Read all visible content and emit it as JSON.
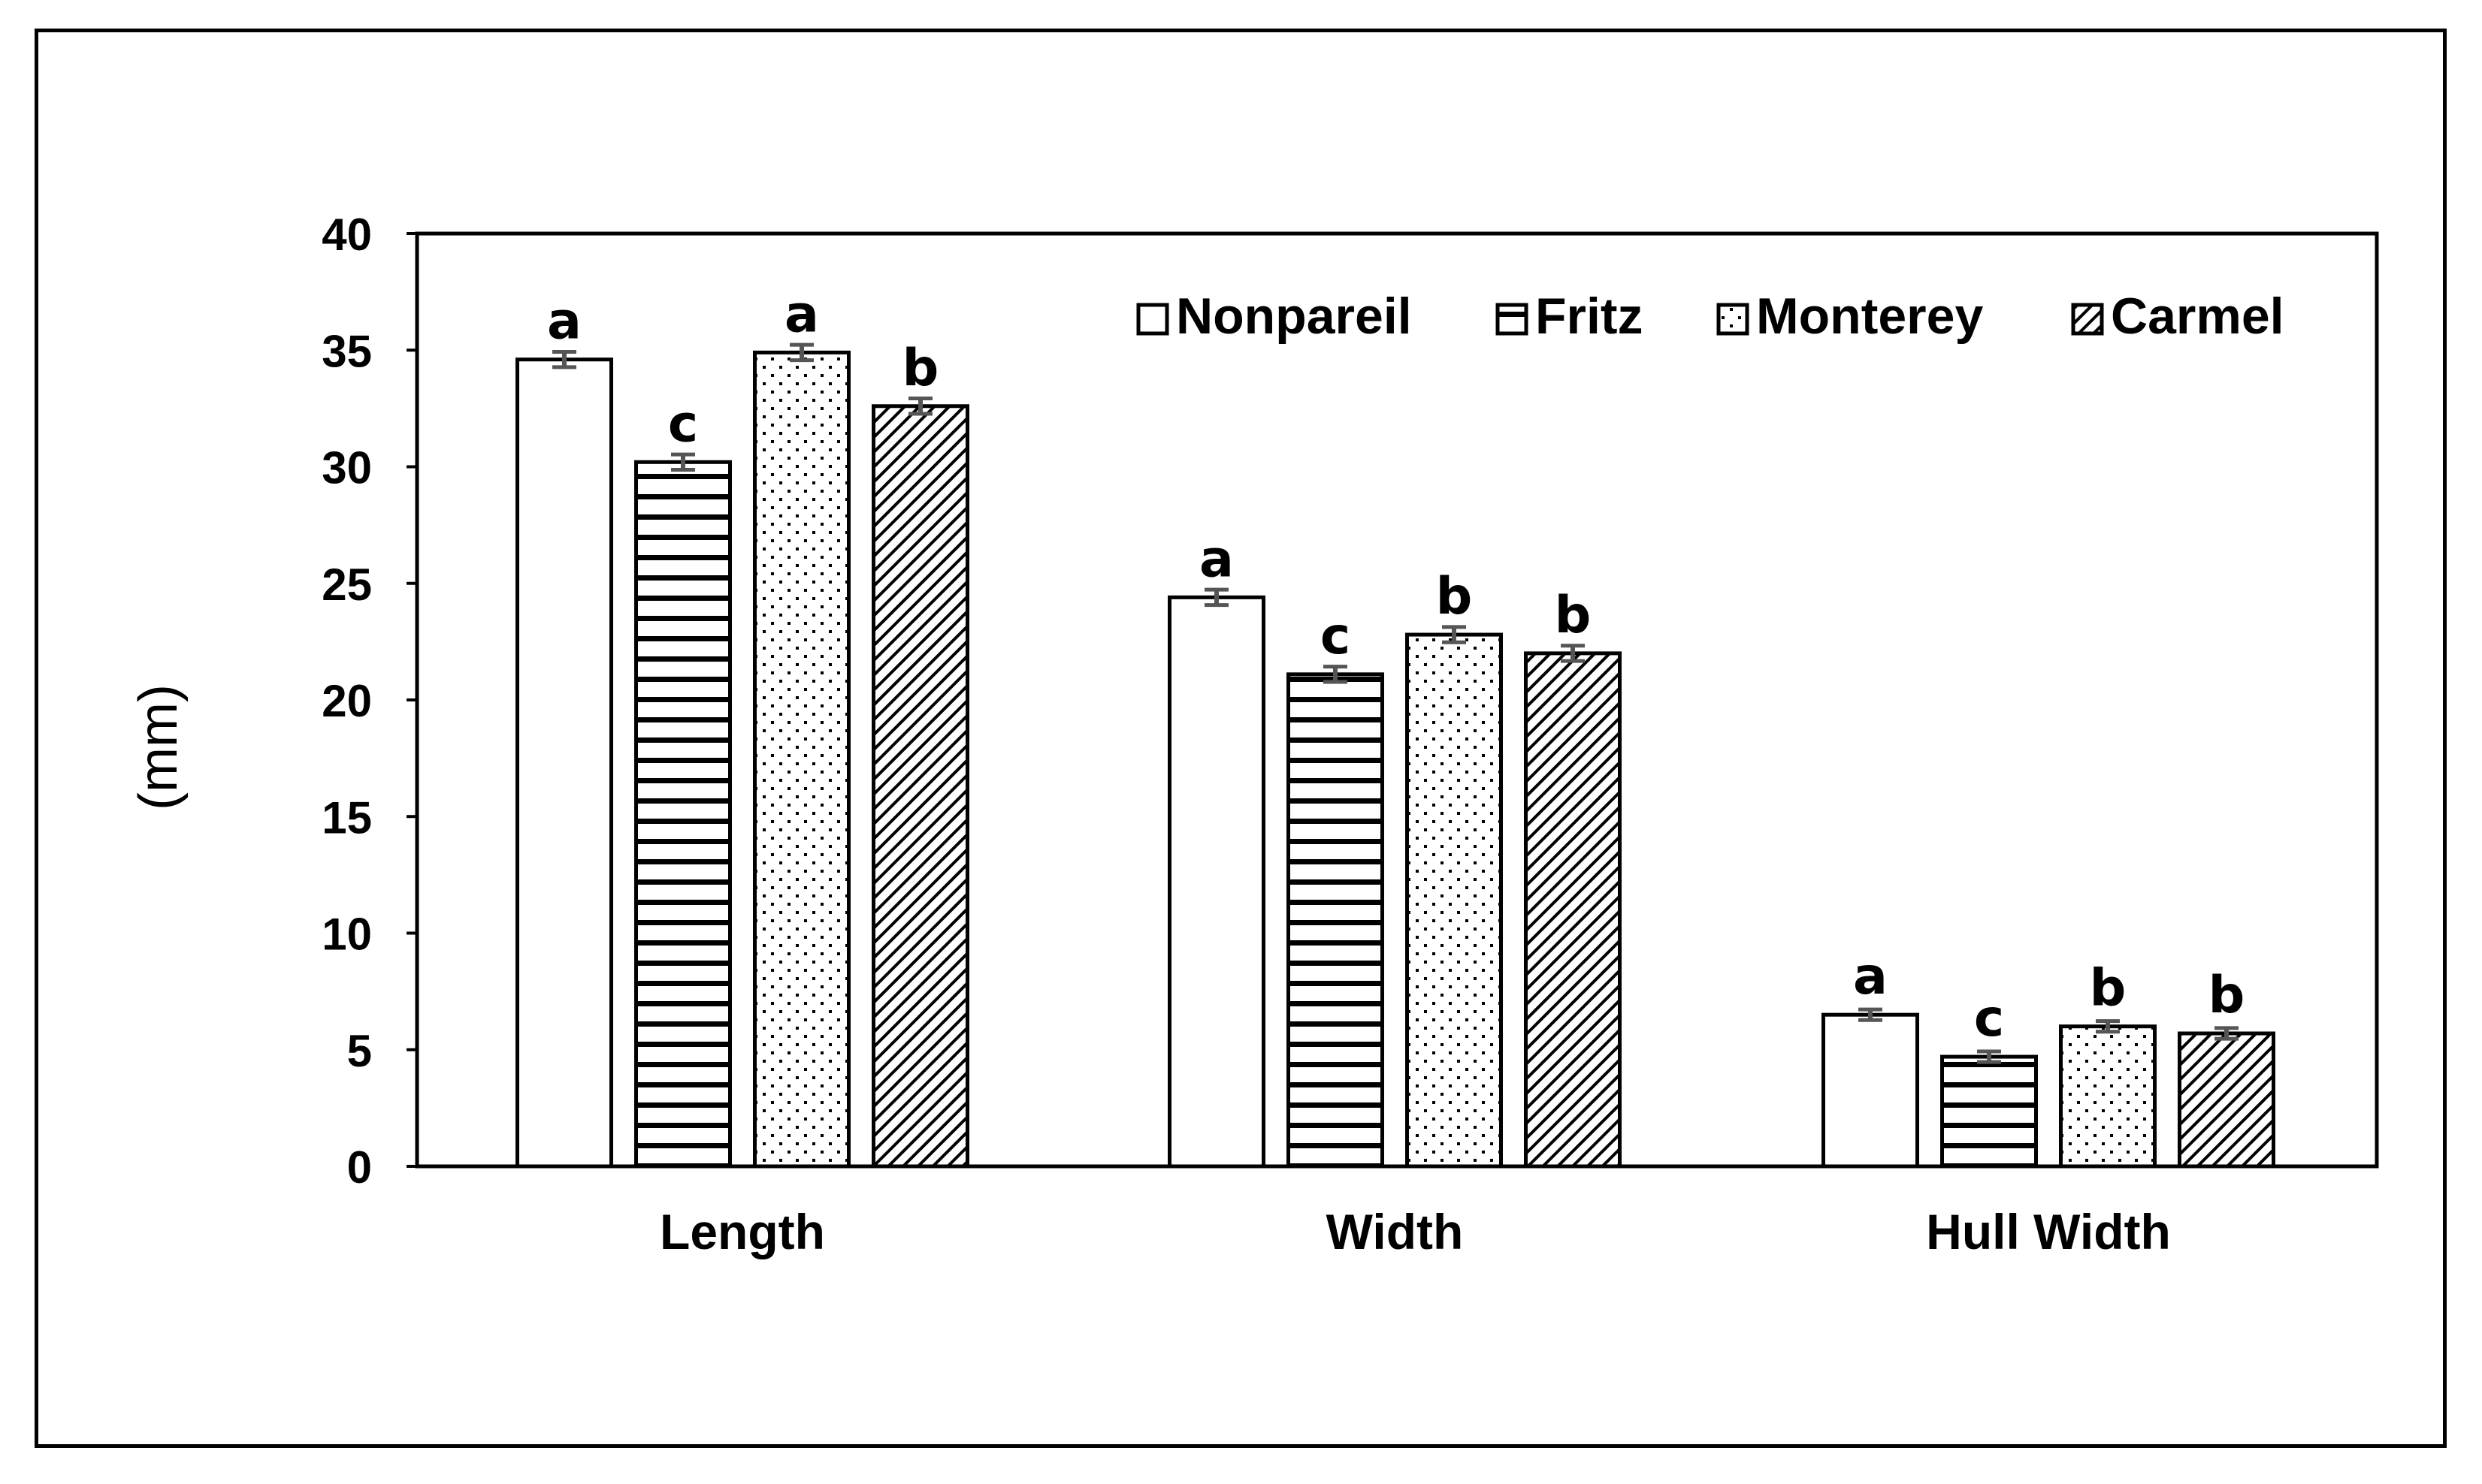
{
  "chart_data": {
    "type": "bar",
    "title": "",
    "xlabel": "",
    "ylabel": "(mm)",
    "ylim": [
      0,
      40
    ],
    "yticks": [
      0,
      5,
      10,
      15,
      20,
      25,
      30,
      35,
      40
    ],
    "grid": false,
    "legend_position": "top-right",
    "categories": [
      "Length",
      "Width",
      "Hull Width"
    ],
    "series": [
      {
        "name": "Nonpareil",
        "pattern": "plain",
        "values": [
          34.6,
          24.4,
          6.5
        ],
        "errors": [
          0.2,
          0.2,
          0.1
        ],
        "labels": [
          "a",
          "a",
          "a"
        ]
      },
      {
        "name": "Fritz",
        "pattern": "horizontal",
        "values": [
          30.2,
          21.1,
          4.7
        ],
        "errors": [
          0.2,
          0.2,
          0.1
        ],
        "labels": [
          "c",
          "c",
          "c"
        ]
      },
      {
        "name": "Monterey",
        "pattern": "dots",
        "values": [
          34.9,
          22.8,
          6.0
        ],
        "errors": [
          0.2,
          0.2,
          0.1
        ],
        "labels": [
          "a",
          "b",
          "b"
        ]
      },
      {
        "name": "Carmel",
        "pattern": "diagonal",
        "values": [
          32.6,
          22.0,
          5.7
        ],
        "errors": [
          0.2,
          0.2,
          0.1
        ],
        "labels": [
          "b",
          "b",
          "b"
        ]
      }
    ],
    "colors": {
      "bar_outline": "#000000",
      "fill": "#ffffff",
      "error_bar": "#555555"
    }
  }
}
